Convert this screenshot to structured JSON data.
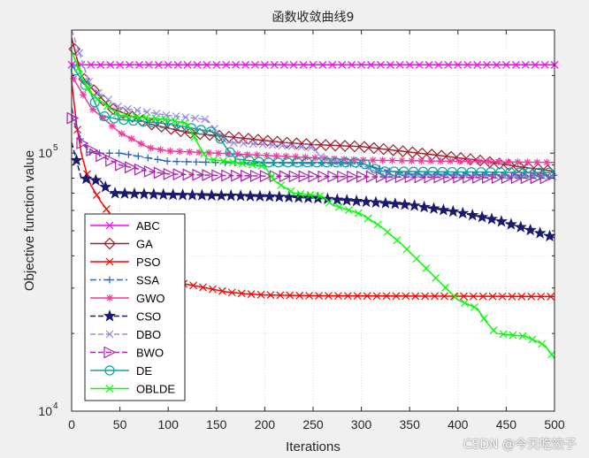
{
  "chart_data": {
    "type": "line",
    "title": "函数收敛曲线9",
    "xlabel": "Iterations",
    "ylabel": "Objective function value",
    "xlim": [
      0,
      500
    ],
    "ylim": [
      10000,
      300000
    ],
    "yscale": "log",
    "xticks": [
      0,
      50,
      100,
      150,
      200,
      250,
      300,
      350,
      400,
      450,
      500
    ],
    "ytick_labels": [
      {
        "value": 10000,
        "base": "10",
        "exp": "4"
      },
      {
        "value": 100000,
        "base": "10",
        "exp": "5"
      }
    ],
    "grid": true,
    "legend_position": "bottom-left",
    "series": [
      {
        "name": "ABC",
        "color": "#ff00ff",
        "marker": "x",
        "dash": "solid",
        "points": [
          [
            0,
            220000
          ],
          [
            500,
            220000
          ]
        ]
      },
      {
        "name": "GA",
        "color": "#a0202c",
        "marker": "diamond",
        "dash": "solid",
        "points": [
          [
            0,
            280000
          ],
          [
            10,
            200000
          ],
          [
            20,
            180000
          ],
          [
            30,
            165000
          ],
          [
            40,
            150000
          ],
          [
            60,
            140000
          ],
          [
            80,
            130000
          ],
          [
            100,
            125000
          ],
          [
            120,
            120000
          ],
          [
            140,
            118000
          ],
          [
            160,
            116000
          ],
          [
            180,
            114000
          ],
          [
            200,
            112000
          ],
          [
            220,
            110000
          ],
          [
            250,
            108000
          ],
          [
            300,
            106000
          ],
          [
            340,
            102000
          ],
          [
            380,
            98000
          ],
          [
            420,
            94000
          ],
          [
            460,
            89000
          ],
          [
            500,
            85000
          ]
        ]
      },
      {
        "name": "PSO",
        "color": "#ff0000",
        "marker": "x",
        "dash": "solid",
        "points": [
          [
            0,
            190000
          ],
          [
            5,
            130000
          ],
          [
            10,
            100000
          ],
          [
            15,
            85000
          ],
          [
            20,
            75000
          ],
          [
            30,
            65000
          ],
          [
            40,
            58000
          ],
          [
            50,
            50000
          ],
          [
            60,
            43000
          ],
          [
            70,
            38000
          ],
          [
            80,
            35000
          ],
          [
            90,
            33000
          ],
          [
            100,
            32000
          ],
          [
            120,
            31000
          ],
          [
            140,
            30000
          ],
          [
            160,
            29000
          ],
          [
            180,
            28500
          ],
          [
            200,
            28200
          ],
          [
            250,
            28000
          ],
          [
            500,
            27800
          ]
        ]
      },
      {
        "name": "SSA",
        "color": "#2a62b8",
        "marker": "plus",
        "dash": "dashdot",
        "points": [
          [
            0,
            150000
          ],
          [
            10,
            110000
          ],
          [
            20,
            100000
          ],
          [
            50,
            100000
          ],
          [
            100,
            93000
          ],
          [
            150,
            92000
          ],
          [
            300,
            91000
          ],
          [
            330,
            85000
          ],
          [
            350,
            83000
          ],
          [
            500,
            82000
          ]
        ]
      },
      {
        "name": "GWO",
        "color": "#f03a9c",
        "marker": "star",
        "dash": "solid",
        "points": [
          [
            0,
            200000
          ],
          [
            20,
            150000
          ],
          [
            50,
            120000
          ],
          [
            80,
            105000
          ],
          [
            100,
            102000
          ],
          [
            150,
            100000
          ],
          [
            200,
            98000
          ],
          [
            250,
            96000
          ],
          [
            300,
            94000
          ],
          [
            500,
            92000
          ]
        ]
      },
      {
        "name": "CSO",
        "color": "#1a1a6e",
        "marker": "pentagram",
        "dash": "dashed",
        "points": [
          [
            0,
            110000
          ],
          [
            10,
            80000
          ],
          [
            30,
            78000
          ],
          [
            40,
            70000
          ],
          [
            100,
            69000
          ],
          [
            200,
            68000
          ],
          [
            250,
            67000
          ],
          [
            300,
            65000
          ],
          [
            350,
            63000
          ],
          [
            400,
            59000
          ],
          [
            440,
            55000
          ],
          [
            470,
            51000
          ],
          [
            500,
            47000
          ]
        ]
      },
      {
        "name": "DBO",
        "color": "#9a8ae2",
        "marker": "x",
        "dash": "dashed",
        "points": [
          [
            0,
            300000
          ],
          [
            20,
            180000
          ],
          [
            50,
            150000
          ],
          [
            100,
            140000
          ],
          [
            140,
            135000
          ],
          [
            160,
            110000
          ],
          [
            200,
            108000
          ],
          [
            250,
            105000
          ],
          [
            260,
            95000
          ],
          [
            300,
            90000
          ],
          [
            320,
            83000
          ],
          [
            500,
            81000
          ]
        ]
      },
      {
        "name": "BWO",
        "color": "#b020b0",
        "marker": "triangle-right",
        "dash": "dashed",
        "points": [
          [
            0,
            140000
          ],
          [
            10,
            110000
          ],
          [
            25,
            100000
          ],
          [
            50,
            90000
          ],
          [
            80,
            85000
          ],
          [
            100,
            83000
          ],
          [
            150,
            82000
          ],
          [
            200,
            81500
          ],
          [
            300,
            81000
          ],
          [
            500,
            80000
          ]
        ]
      },
      {
        "name": "DE",
        "color": "#10a0a0",
        "marker": "circle",
        "dash": "solid",
        "points": [
          [
            0,
            220000
          ],
          [
            20,
            170000
          ],
          [
            30,
            140000
          ],
          [
            50,
            135000
          ],
          [
            100,
            130000
          ],
          [
            150,
            120000
          ],
          [
            160,
            105000
          ],
          [
            170,
            95000
          ],
          [
            200,
            92000
          ],
          [
            300,
            92000
          ],
          [
            320,
            85000
          ],
          [
            500,
            84000
          ]
        ]
      },
      {
        "name": "OBLDE",
        "color": "#00ff00",
        "marker": "x",
        "dash": "solid",
        "points": [
          [
            0,
            250000
          ],
          [
            10,
            200000
          ],
          [
            20,
            170000
          ],
          [
            50,
            140000
          ],
          [
            100,
            135000
          ],
          [
            120,
            130000
          ],
          [
            130,
            110000
          ],
          [
            140,
            95000
          ],
          [
            200,
            89000
          ],
          [
            210,
            78000
          ],
          [
            230,
            70000
          ],
          [
            260,
            68000
          ],
          [
            270,
            63000
          ],
          [
            300,
            58000
          ],
          [
            320,
            52000
          ],
          [
            340,
            45000
          ],
          [
            360,
            38000
          ],
          [
            380,
            32000
          ],
          [
            400,
            27000
          ],
          [
            420,
            25000
          ],
          [
            430,
            22000
          ],
          [
            440,
            20000
          ],
          [
            470,
            19500
          ],
          [
            490,
            18000
          ],
          [
            500,
            16000
          ]
        ]
      }
    ]
  },
  "watermark": "CSDN @今天吃饺子"
}
